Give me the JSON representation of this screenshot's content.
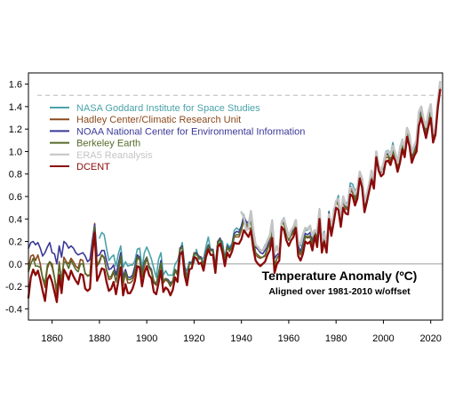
{
  "chart_data": {
    "type": "line",
    "title": "",
    "xlabel": "",
    "ylabel": "",
    "xlim": [
      1850,
      2025
    ],
    "ylim": [
      -0.5,
      1.7
    ],
    "x_ticks": [
      1860,
      1880,
      1900,
      1920,
      1940,
      1960,
      1980,
      2000,
      2020
    ],
    "y_ticks": [
      -0.4,
      -0.2,
      0.0,
      0.2,
      0.4,
      0.6,
      0.8,
      1.0,
      1.2,
      1.4,
      1.6
    ],
    "x_tick_labels": [
      "1860",
      "1880",
      "1900",
      "1920",
      "1940",
      "1960",
      "1980",
      "2000",
      "2020"
    ],
    "y_tick_labels": [
      "-0.4",
      "-0.2",
      "0.0",
      "0.2",
      "0.4",
      "0.6",
      "0.8",
      "1.0",
      "1.2",
      "1.4",
      "1.6"
    ],
    "grid": false,
    "legend_position": "top-left",
    "reference_lines": [
      {
        "y": 0.0,
        "style": "solid",
        "color": "#a8a8a8"
      },
      {
        "y": 1.5,
        "style": "dashed",
        "color": "#c8c8c8"
      }
    ],
    "annotation": {
      "title": "Temperature Anomaly (ºC)",
      "subtitle": "Aligned over 1981-2010 w/offset"
    },
    "series": [
      {
        "name": "NASA Goddard Institute for Space Studies",
        "color": "#4aa3a8",
        "start_year": 1880,
        "values": [
          0.23,
          0.28,
          0.26,
          0.14,
          0.03,
          0.06,
          0.08,
          -0.02,
          0.09,
          0.16,
          -0.03,
          0.02,
          -0.02,
          -0.01,
          -0.01,
          0.03,
          0.13,
          0.14,
          -0.04,
          0.1,
          0.15,
          0.1,
          0.04,
          -0.04,
          -0.12,
          0.04,
          0.1,
          -0.1,
          -0.06,
          -0.1,
          -0.1,
          -0.1,
          0.0,
          0.03,
          0.11,
          0.19,
          -0.03,
          -0.06,
          0.02,
          0.01,
          0.01,
          0.13,
          0.04,
          0.05,
          0.05,
          0.15,
          0.24,
          0.12,
          0.11,
          -0.04,
          0.17,
          0.22,
          0.2,
          0.04,
          0.18,
          0.15,
          0.18,
          0.3,
          0.32,
          0.3,
          0.33,
          0.44,
          0.36,
          0.34,
          0.46,
          0.27,
          0.16,
          0.14,
          0.12,
          0.12,
          0.17,
          0.2,
          0.24,
          0.39,
          0.11,
          0.16,
          0.1,
          0.38,
          0.41,
          0.31,
          0.23,
          0.29,
          0.33,
          0.38,
          0.2,
          0.16,
          0.24,
          0.3,
          0.3,
          0.33,
          0.21,
          0.3,
          0.21,
          0.49,
          0.23,
          0.29,
          0.18,
          0.47,
          0.27,
          0.48,
          0.55,
          0.61,
          0.4,
          0.6,
          0.52,
          0.56,
          0.72,
          0.71,
          0.65,
          0.68,
          0.82,
          0.75,
          0.58,
          0.61,
          0.71,
          0.82,
          0.73,
          0.98,
          0.86,
          0.81,
          0.9,
          1.0,
          1.01,
          0.98,
          1.08,
          0.98,
          0.91,
          1.04,
          1.11,
          1.03,
          1.21,
          1.14,
          0.98,
          1.05,
          1.09,
          1.34,
          1.37,
          1.27,
          1.2,
          1.32,
          1.4,
          1.13,
          1.17,
          1.42,
          1.59
        ]
      },
      {
        "name": "Hadley Center/Climatic Research Unit",
        "color": "#8b4a1e",
        "start_year": 1850,
        "values": [
          -0.05,
          0.07,
          0.08,
          0.03,
          0.08,
          0.0,
          -0.13,
          -0.21,
          -0.04,
          0.02,
          0.0,
          -0.12,
          -0.29,
          0.02,
          -0.17,
          0.06,
          0.02,
          0.0,
          0.05,
          0.02,
          -0.02,
          -0.04,
          0.04,
          0.03,
          -0.09,
          -0.1,
          -0.1,
          0.19,
          0.36,
          -0.02,
          0.01,
          0.08,
          0.05,
          -0.06,
          -0.14,
          -0.13,
          -0.07,
          -0.16,
          -0.06,
          0.06,
          -0.19,
          -0.08,
          -0.17,
          -0.17,
          -0.15,
          -0.08,
          0.05,
          0.04,
          -0.12,
          -0.02,
          0.05,
          -0.03,
          -0.07,
          -0.17,
          -0.19,
          -0.1,
          0.0,
          -0.17,
          -0.14,
          -0.16,
          -0.2,
          -0.16,
          -0.06,
          -0.1,
          0.13,
          0.15,
          -0.04,
          -0.15,
          0.0,
          0.0,
          0.1,
          0.09,
          0.05,
          0.05,
          -0.02,
          0.1,
          0.16,
          0.12,
          0.12,
          -0.05,
          0.2,
          0.22,
          0.14,
          0.03,
          0.15,
          0.11,
          0.15,
          0.24,
          0.24,
          0.24,
          0.3,
          0.38,
          0.35,
          0.31,
          0.32,
          0.19,
          0.08,
          0.06,
          0.05,
          0.06,
          0.07,
          0.13,
          0.18,
          0.29,
          -0.04,
          0.05,
          0.08,
          0.37,
          0.35,
          0.26,
          0.22,
          0.25,
          0.28,
          0.36,
          0.12,
          0.08,
          0.13,
          0.24,
          0.23,
          0.24,
          0.16,
          0.3,
          0.2,
          0.44,
          0.15,
          0.24,
          0.15,
          0.45,
          0.3,
          0.41,
          0.55,
          0.52,
          0.38,
          0.55,
          0.49,
          0.48,
          0.66,
          0.63,
          0.56,
          0.62,
          0.79,
          0.72,
          0.5,
          0.6,
          0.69,
          0.78,
          0.71,
          0.99,
          0.88,
          0.83,
          0.85,
          0.95,
          0.95,
          0.91,
          0.99,
          0.95,
          0.86,
          0.94,
          1.05,
          0.98,
          1.15,
          1.08,
          0.92,
          0.98,
          1.03,
          1.25,
          1.33,
          1.24,
          1.14,
          1.24,
          1.32,
          1.1,
          1.18,
          1.41,
          1.56
        ]
      },
      {
        "name": "NOAA National Center for Environmental Information",
        "color": "#3a3896",
        "start_year": 1850,
        "values": [
          0.14,
          0.19,
          0.2,
          0.17,
          0.19,
          0.14,
          0.07,
          0.1,
          0.15,
          0.19,
          0.1,
          0.09,
          0.0,
          0.16,
          0.06,
          0.2,
          0.18,
          0.14,
          0.16,
          0.14,
          0.1,
          0.08,
          0.09,
          0.1,
          0.07,
          0.02,
          0.04,
          0.21,
          0.35,
          0.07,
          0.08,
          0.12,
          0.12,
          0.03,
          -0.05,
          -0.04,
          -0.01,
          -0.1,
          0.0,
          0.1,
          -0.12,
          -0.05,
          -0.12,
          -0.12,
          -0.1,
          -0.02,
          0.08,
          0.06,
          -0.08,
          0.02,
          0.06,
          -0.02,
          -0.05,
          -0.16,
          -0.18,
          -0.08,
          0.03,
          -0.15,
          -0.13,
          -0.14,
          -0.17,
          -0.15,
          -0.05,
          -0.08,
          0.14,
          0.16,
          -0.02,
          -0.12,
          0.01,
          0.01,
          0.09,
          0.1,
          0.07,
          0.06,
          0.0,
          0.11,
          0.17,
          0.13,
          0.13,
          -0.02,
          0.2,
          0.23,
          0.16,
          0.05,
          0.16,
          0.13,
          0.17,
          0.27,
          0.29,
          0.28,
          0.34,
          0.42,
          0.38,
          0.36,
          0.46,
          0.29,
          0.15,
          0.13,
          0.1,
          0.09,
          0.12,
          0.17,
          0.21,
          0.32,
          0.05,
          0.08,
          0.1,
          0.36,
          0.37,
          0.29,
          0.21,
          0.27,
          0.31,
          0.36,
          0.16,
          0.11,
          0.18,
          0.27,
          0.26,
          0.28,
          0.19,
          0.3,
          0.2,
          0.46,
          0.19,
          0.26,
          0.17,
          0.46,
          0.28,
          0.45,
          0.55,
          0.56,
          0.38,
          0.58,
          0.51,
          0.52,
          0.69,
          0.68,
          0.6,
          0.65,
          0.81,
          0.73,
          0.54,
          0.61,
          0.7,
          0.8,
          0.72,
          0.98,
          0.86,
          0.82,
          0.88,
          0.98,
          0.98,
          0.94,
          1.02,
          0.97,
          0.89,
          1.0,
          1.07,
          1.0,
          1.18,
          1.11,
          0.96,
          1.02,
          1.06,
          1.3,
          1.35,
          1.26,
          1.17,
          1.28,
          1.37,
          1.12,
          1.18,
          1.43,
          1.58
        ]
      },
      {
        "name": "Berkeley Earth",
        "color": "#566b2a",
        "start_year": 1850,
        "values": [
          -0.07,
          0.0,
          0.05,
          -0.02,
          -0.02,
          -0.03,
          -0.12,
          -0.17,
          -0.01,
          0.02,
          -0.03,
          -0.12,
          -0.23,
          0.0,
          -0.14,
          0.02,
          0.01,
          -0.04,
          0.03,
          -0.01,
          -0.05,
          -0.07,
          0.0,
          0.0,
          -0.08,
          -0.11,
          -0.1,
          0.16,
          0.33,
          -0.02,
          0.03,
          0.08,
          0.06,
          -0.05,
          -0.12,
          -0.11,
          -0.06,
          -0.16,
          -0.05,
          0.07,
          -0.17,
          -0.07,
          -0.14,
          -0.14,
          -0.12,
          -0.06,
          0.06,
          0.05,
          -0.1,
          0.0,
          0.06,
          -0.03,
          -0.06,
          -0.15,
          -0.18,
          -0.09,
          0.01,
          -0.16,
          -0.13,
          -0.15,
          -0.19,
          -0.15,
          -0.05,
          -0.09,
          0.13,
          0.15,
          -0.04,
          -0.13,
          0.0,
          0.0,
          0.09,
          0.09,
          0.06,
          0.05,
          -0.01,
          0.1,
          0.16,
          0.12,
          0.12,
          -0.03,
          0.19,
          0.22,
          0.15,
          0.04,
          0.15,
          0.12,
          0.16,
          0.25,
          0.26,
          0.26,
          0.31,
          0.39,
          0.36,
          0.33,
          0.38,
          0.22,
          0.1,
          0.08,
          0.06,
          0.06,
          0.08,
          0.14,
          0.19,
          0.3,
          -0.02,
          0.05,
          0.08,
          0.37,
          0.36,
          0.27,
          0.21,
          0.26,
          0.29,
          0.36,
          0.13,
          0.09,
          0.15,
          0.25,
          0.24,
          0.25,
          0.17,
          0.29,
          0.19,
          0.45,
          0.16,
          0.25,
          0.15,
          0.45,
          0.29,
          0.43,
          0.55,
          0.54,
          0.38,
          0.57,
          0.5,
          0.5,
          0.67,
          0.66,
          0.58,
          0.63,
          0.8,
          0.73,
          0.52,
          0.6,
          0.7,
          0.79,
          0.71,
          0.99,
          0.87,
          0.82,
          0.86,
          0.97,
          0.97,
          0.93,
          1.0,
          0.96,
          0.87,
          0.97,
          1.06,
          0.99,
          1.17,
          1.1,
          0.94,
          1.0,
          1.05,
          1.28,
          1.34,
          1.25,
          1.16,
          1.26,
          1.35,
          1.11,
          1.18,
          1.42,
          1.57
        ]
      },
      {
        "name": "ERA5 Reanalysis",
        "color": "#c4c4c4",
        "start_year": 1940,
        "values": [
          0.46,
          0.42,
          0.3,
          0.32,
          0.47,
          0.3,
          0.17,
          0.15,
          0.12,
          0.12,
          0.15,
          0.21,
          0.25,
          0.38,
          0.1,
          0.15,
          0.1,
          0.37,
          0.4,
          0.32,
          0.24,
          0.3,
          0.33,
          0.39,
          0.18,
          0.18,
          0.26,
          0.32,
          0.31,
          0.34,
          0.25,
          0.3,
          0.28,
          0.48,
          0.2,
          0.27,
          0.17,
          0.44,
          0.34,
          0.44,
          0.56,
          0.58,
          0.42,
          0.6,
          0.53,
          0.52,
          0.68,
          0.68,
          0.62,
          0.67,
          0.82,
          0.76,
          0.55,
          0.62,
          0.71,
          0.83,
          0.75,
          1.0,
          0.87,
          0.83,
          0.89,
          0.99,
          1.0,
          0.96,
          1.05,
          0.99,
          0.9,
          1.02,
          1.1,
          1.03,
          1.21,
          1.15,
          0.99,
          1.05,
          1.1,
          1.35,
          1.4,
          1.28,
          1.22,
          1.34,
          1.42,
          1.16,
          1.2,
          1.45,
          1.62
        ]
      },
      {
        "name": "DCENT",
        "color": "#8b0a0a",
        "start_year": 1850,
        "values": [
          -0.3,
          -0.12,
          -0.05,
          -0.1,
          -0.06,
          -0.14,
          -0.24,
          -0.33,
          -0.14,
          -0.1,
          -0.16,
          -0.25,
          -0.34,
          -0.1,
          -0.26,
          -0.05,
          -0.09,
          -0.14,
          -0.06,
          -0.11,
          -0.15,
          -0.18,
          -0.09,
          -0.1,
          -0.22,
          -0.24,
          -0.22,
          0.1,
          0.28,
          -0.15,
          -0.1,
          -0.04,
          -0.05,
          -0.16,
          -0.24,
          -0.22,
          -0.16,
          -0.27,
          -0.15,
          -0.03,
          -0.28,
          -0.18,
          -0.26,
          -0.26,
          -0.22,
          -0.15,
          -0.02,
          -0.03,
          -0.2,
          -0.08,
          -0.02,
          -0.1,
          -0.13,
          -0.25,
          -0.27,
          -0.17,
          -0.06,
          -0.25,
          -0.21,
          -0.23,
          -0.28,
          -0.23,
          -0.12,
          -0.16,
          0.08,
          0.11,
          -0.1,
          -0.19,
          -0.05,
          -0.04,
          0.06,
          0.05,
          0.0,
          0.01,
          -0.06,
          0.06,
          0.13,
          0.08,
          0.08,
          -0.08,
          0.15,
          0.18,
          0.1,
          -0.02,
          0.1,
          0.06,
          0.11,
          0.19,
          0.18,
          0.18,
          0.22,
          0.3,
          0.27,
          0.24,
          0.3,
          0.14,
          0.03,
          0.0,
          -0.02,
          0.0,
          0.02,
          0.08,
          0.12,
          0.23,
          -0.08,
          0.0,
          0.03,
          0.33,
          0.3,
          0.21,
          0.16,
          0.21,
          0.24,
          0.32,
          0.07,
          0.03,
          0.09,
          0.2,
          0.18,
          0.2,
          0.12,
          0.25,
          0.15,
          0.4,
          0.1,
          0.2,
          0.1,
          0.4,
          0.25,
          0.37,
          0.5,
          0.48,
          0.33,
          0.5,
          0.45,
          0.44,
          0.62,
          0.6,
          0.52,
          0.58,
          0.76,
          0.68,
          0.46,
          0.55,
          0.65,
          0.75,
          0.67,
          0.95,
          0.83,
          0.78,
          0.8,
          0.91,
          0.92,
          0.88,
          0.96,
          0.92,
          0.82,
          0.9,
          1.02,
          0.95,
          1.13,
          1.05,
          0.9,
          0.96,
          1.0,
          1.23,
          1.3,
          1.21,
          1.12,
          1.22,
          1.3,
          1.08,
          1.15,
          1.39,
          1.55
        ]
      }
    ]
  }
}
